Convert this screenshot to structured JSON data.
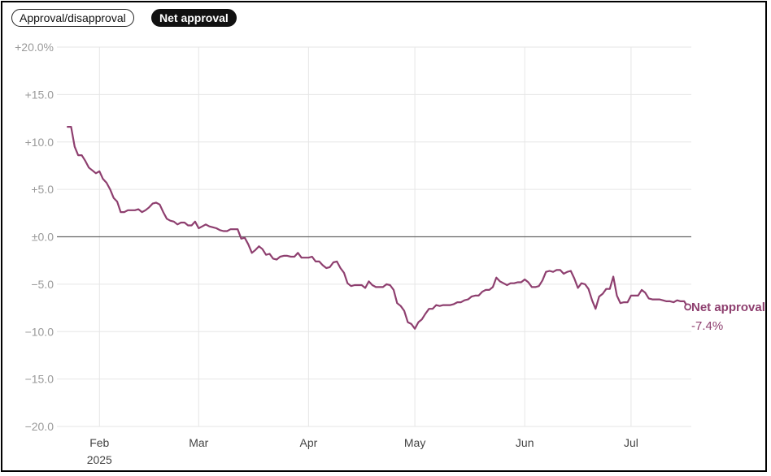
{
  "toggles": [
    {
      "label": "Approval/disapproval",
      "active": false
    },
    {
      "label": "Net approval",
      "active": true
    }
  ],
  "chart_data": {
    "type": "line",
    "title": "",
    "xlabel": "",
    "ylabel": "",
    "ylim": [
      -20,
      20
    ],
    "xlim": [
      "2025-01-20",
      "2025-07-18"
    ],
    "y_ticks": [
      {
        "value": 20,
        "label": "+20.0%"
      },
      {
        "value": 15,
        "label": "+15.0"
      },
      {
        "value": 10,
        "label": "+10.0"
      },
      {
        "value": 5,
        "label": "+5.0"
      },
      {
        "value": 0,
        "label": "±0.0"
      },
      {
        "value": -5,
        "label": "−5.0"
      },
      {
        "value": -10,
        "label": "−10.0"
      },
      {
        "value": -15,
        "label": "−15.0"
      },
      {
        "value": -20,
        "label": "−20.0"
      }
    ],
    "x_ticks": [
      {
        "date": "2025-02-01",
        "label": "Feb",
        "sublabel": "2025"
      },
      {
        "date": "2025-03-01",
        "label": "Mar",
        "sublabel": ""
      },
      {
        "date": "2025-04-01",
        "label": "Apr",
        "sublabel": ""
      },
      {
        "date": "2025-05-01",
        "label": "May",
        "sublabel": ""
      },
      {
        "date": "2025-06-01",
        "label": "Jun",
        "sublabel": ""
      },
      {
        "date": "2025-07-01",
        "label": "Jul",
        "sublabel": ""
      }
    ],
    "grid": true,
    "series": [
      {
        "name": "Net approval",
        "color": "#8e3f6f",
        "end_label": "Net approval",
        "end_value_label": "-7.4%",
        "points": [
          [
            "2025-01-23",
            11.6
          ],
          [
            "2025-01-24",
            11.6
          ],
          [
            "2025-01-25",
            9.5
          ],
          [
            "2025-01-26",
            8.6
          ],
          [
            "2025-01-27",
            8.6
          ],
          [
            "2025-01-28",
            8.0
          ],
          [
            "2025-01-29",
            7.3
          ],
          [
            "2025-01-30",
            7.0
          ],
          [
            "2025-01-31",
            6.7
          ],
          [
            "2025-02-01",
            6.9
          ],
          [
            "2025-02-02",
            6.1
          ],
          [
            "2025-02-03",
            5.7
          ],
          [
            "2025-02-04",
            5.0
          ],
          [
            "2025-02-05",
            4.1
          ],
          [
            "2025-02-06",
            3.7
          ],
          [
            "2025-02-07",
            2.6
          ],
          [
            "2025-02-08",
            2.6
          ],
          [
            "2025-02-09",
            2.8
          ],
          [
            "2025-02-10",
            2.8
          ],
          [
            "2025-02-11",
            2.8
          ],
          [
            "2025-02-12",
            2.9
          ],
          [
            "2025-02-13",
            2.6
          ],
          [
            "2025-02-14",
            2.8
          ],
          [
            "2025-02-15",
            3.1
          ],
          [
            "2025-02-16",
            3.5
          ],
          [
            "2025-02-17",
            3.6
          ],
          [
            "2025-02-18",
            3.4
          ],
          [
            "2025-02-19",
            2.6
          ],
          [
            "2025-02-20",
            1.9
          ],
          [
            "2025-02-21",
            1.7
          ],
          [
            "2025-02-22",
            1.6
          ],
          [
            "2025-02-23",
            1.3
          ],
          [
            "2025-02-24",
            1.5
          ],
          [
            "2025-02-25",
            1.5
          ],
          [
            "2025-02-26",
            1.2
          ],
          [
            "2025-02-27",
            1.2
          ],
          [
            "2025-02-28",
            1.6
          ],
          [
            "2025-03-01",
            0.9
          ],
          [
            "2025-03-02",
            1.1
          ],
          [
            "2025-03-03",
            1.3
          ],
          [
            "2025-03-04",
            1.1
          ],
          [
            "2025-03-05",
            1.0
          ],
          [
            "2025-03-06",
            0.9
          ],
          [
            "2025-03-07",
            0.7
          ],
          [
            "2025-03-08",
            0.6
          ],
          [
            "2025-03-09",
            0.6
          ],
          [
            "2025-03-10",
            0.8
          ],
          [
            "2025-03-11",
            0.8
          ],
          [
            "2025-03-12",
            0.8
          ],
          [
            "2025-03-13",
            -0.2
          ],
          [
            "2025-03-14",
            -0.1
          ],
          [
            "2025-03-15",
            -0.8
          ],
          [
            "2025-03-16",
            -1.7
          ],
          [
            "2025-03-17",
            -1.4
          ],
          [
            "2025-03-18",
            -1.0
          ],
          [
            "2025-03-19",
            -1.3
          ],
          [
            "2025-03-20",
            -1.9
          ],
          [
            "2025-03-21",
            -1.8
          ],
          [
            "2025-03-22",
            -2.3
          ],
          [
            "2025-03-23",
            -2.4
          ],
          [
            "2025-03-24",
            -2.1
          ],
          [
            "2025-03-25",
            -2.0
          ],
          [
            "2025-03-26",
            -2.0
          ],
          [
            "2025-03-27",
            -2.1
          ],
          [
            "2025-03-28",
            -2.1
          ],
          [
            "2025-03-29",
            -1.7
          ],
          [
            "2025-03-30",
            -2.2
          ],
          [
            "2025-03-31",
            -2.2
          ],
          [
            "2025-04-01",
            -2.2
          ],
          [
            "2025-04-02",
            -2.1
          ],
          [
            "2025-04-03",
            -2.6
          ],
          [
            "2025-04-04",
            -2.6
          ],
          [
            "2025-04-05",
            -3.0
          ],
          [
            "2025-04-06",
            -3.3
          ],
          [
            "2025-04-07",
            -3.2
          ],
          [
            "2025-04-08",
            -2.7
          ],
          [
            "2025-04-09",
            -2.6
          ],
          [
            "2025-04-10",
            -3.3
          ],
          [
            "2025-04-11",
            -3.8
          ],
          [
            "2025-04-12",
            -4.9
          ],
          [
            "2025-04-13",
            -5.2
          ],
          [
            "2025-04-14",
            -5.1
          ],
          [
            "2025-04-15",
            -5.1
          ],
          [
            "2025-04-16",
            -5.1
          ],
          [
            "2025-04-17",
            -5.4
          ],
          [
            "2025-04-18",
            -4.7
          ],
          [
            "2025-04-19",
            -5.1
          ],
          [
            "2025-04-20",
            -5.3
          ],
          [
            "2025-04-21",
            -5.3
          ],
          [
            "2025-04-22",
            -5.3
          ],
          [
            "2025-04-23",
            -5.0
          ],
          [
            "2025-04-24",
            -5.1
          ],
          [
            "2025-04-25",
            -5.6
          ],
          [
            "2025-04-26",
            -7.0
          ],
          [
            "2025-04-27",
            -7.3
          ],
          [
            "2025-04-28",
            -7.8
          ],
          [
            "2025-04-29",
            -9.0
          ],
          [
            "2025-04-30",
            -9.2
          ],
          [
            "2025-05-01",
            -9.7
          ],
          [
            "2025-05-02",
            -9.0
          ],
          [
            "2025-05-03",
            -8.7
          ],
          [
            "2025-05-04",
            -8.1
          ],
          [
            "2025-05-05",
            -7.6
          ],
          [
            "2025-05-06",
            -7.6
          ],
          [
            "2025-05-07",
            -7.2
          ],
          [
            "2025-05-08",
            -7.3
          ],
          [
            "2025-05-09",
            -7.2
          ],
          [
            "2025-05-10",
            -7.2
          ],
          [
            "2025-05-11",
            -7.2
          ],
          [
            "2025-05-12",
            -7.1
          ],
          [
            "2025-05-13",
            -6.9
          ],
          [
            "2025-05-14",
            -6.9
          ],
          [
            "2025-05-15",
            -6.7
          ],
          [
            "2025-05-16",
            -6.6
          ],
          [
            "2025-05-17",
            -6.3
          ],
          [
            "2025-05-18",
            -6.2
          ],
          [
            "2025-05-19",
            -6.2
          ],
          [
            "2025-05-20",
            -5.8
          ],
          [
            "2025-05-21",
            -5.6
          ],
          [
            "2025-05-22",
            -5.6
          ],
          [
            "2025-05-23",
            -5.3
          ],
          [
            "2025-05-24",
            -4.3
          ],
          [
            "2025-05-25",
            -4.7
          ],
          [
            "2025-05-26",
            -4.9
          ],
          [
            "2025-05-27",
            -5.1
          ],
          [
            "2025-05-28",
            -4.9
          ],
          [
            "2025-05-29",
            -4.9
          ],
          [
            "2025-05-30",
            -4.8
          ],
          [
            "2025-05-31",
            -4.8
          ],
          [
            "2025-06-01",
            -4.5
          ],
          [
            "2025-06-02",
            -4.8
          ],
          [
            "2025-06-03",
            -5.3
          ],
          [
            "2025-06-04",
            -5.3
          ],
          [
            "2025-06-05",
            -5.2
          ],
          [
            "2025-06-06",
            -4.6
          ],
          [
            "2025-06-07",
            -3.7
          ],
          [
            "2025-06-08",
            -3.6
          ],
          [
            "2025-06-09",
            -3.7
          ],
          [
            "2025-06-10",
            -3.5
          ],
          [
            "2025-06-11",
            -3.5
          ],
          [
            "2025-06-12",
            -3.9
          ],
          [
            "2025-06-13",
            -3.7
          ],
          [
            "2025-06-14",
            -3.6
          ],
          [
            "2025-06-15",
            -4.4
          ],
          [
            "2025-06-16",
            -5.4
          ],
          [
            "2025-06-17",
            -4.9
          ],
          [
            "2025-06-18",
            -5.0
          ],
          [
            "2025-06-19",
            -5.5
          ],
          [
            "2025-06-20",
            -6.7
          ],
          [
            "2025-06-21",
            -7.6
          ],
          [
            "2025-06-22",
            -6.3
          ],
          [
            "2025-06-23",
            -6.0
          ],
          [
            "2025-06-24",
            -5.5
          ],
          [
            "2025-06-25",
            -5.5
          ],
          [
            "2025-06-26",
            -4.2
          ],
          [
            "2025-06-27",
            -6.2
          ],
          [
            "2025-06-28",
            -7.0
          ],
          [
            "2025-06-29",
            -6.9
          ],
          [
            "2025-06-30",
            -6.9
          ],
          [
            "2025-07-01",
            -6.2
          ],
          [
            "2025-07-02",
            -6.2
          ],
          [
            "2025-07-03",
            -6.2
          ],
          [
            "2025-07-04",
            -5.6
          ],
          [
            "2025-07-05",
            -5.9
          ],
          [
            "2025-07-06",
            -6.5
          ],
          [
            "2025-07-07",
            -6.6
          ],
          [
            "2025-07-08",
            -6.6
          ],
          [
            "2025-07-09",
            -6.6
          ],
          [
            "2025-07-10",
            -6.7
          ],
          [
            "2025-07-11",
            -6.8
          ],
          [
            "2025-07-12",
            -6.8
          ],
          [
            "2025-07-13",
            -6.9
          ],
          [
            "2025-07-14",
            -6.7
          ],
          [
            "2025-07-15",
            -6.8
          ],
          [
            "2025-07-16",
            -6.8
          ],
          [
            "2025-07-17",
            -7.4
          ]
        ]
      }
    ]
  }
}
